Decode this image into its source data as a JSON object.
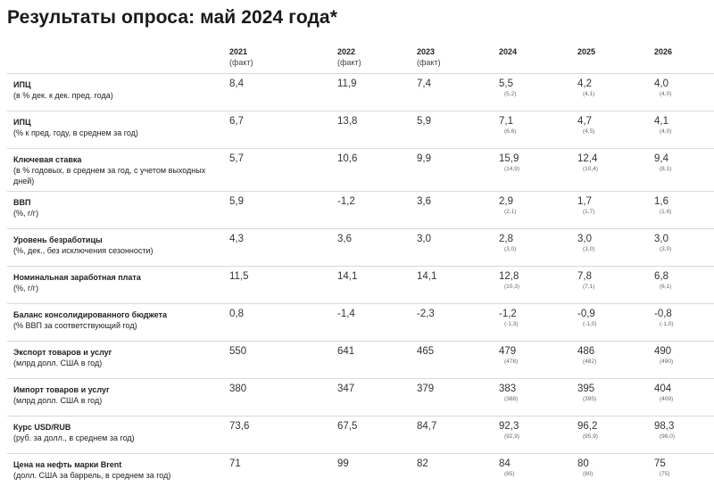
{
  "title": "Результаты опроса: май 2024 года*",
  "columns": [
    {
      "year": "2021",
      "note": "(факт)"
    },
    {
      "year": "2022",
      "note": "(факт)"
    },
    {
      "year": "2023",
      "note": "(факт)"
    },
    {
      "year": "2024",
      "note": ""
    },
    {
      "year": "2025",
      "note": ""
    },
    {
      "year": "2026",
      "note": ""
    }
  ],
  "rows": [
    {
      "name": "ИПЦ",
      "unit": "(в % дек. к дек. пред. года)",
      "v2021": "8,4",
      "v2022": "11,9",
      "v2023": "7,4",
      "v2024": "5,5",
      "c2024": "(5,2)",
      "v2025": "4,2",
      "c2025": "(4,1)",
      "v2026": "4,0",
      "c2026": "(4,0)"
    },
    {
      "name": "ИПЦ",
      "unit": "(% к пред. году, в среднем за год)",
      "v2021": "6,7",
      "v2022": "13,8",
      "v2023": "5,9",
      "v2024": "7,1",
      "c2024": "(6,6)",
      "v2025": "4,7",
      "c2025": "(4,5)",
      "v2026": "4,1",
      "c2026": "(4,0)"
    },
    {
      "name": "Ключевая ставка",
      "unit": "(в % годовых, в среднем за год, с учетом выходных дней)",
      "v2021": "5,7",
      "v2022": "10,6",
      "v2023": "9,9",
      "v2024": "15,9",
      "c2024": "(14,9)",
      "v2025": "12,4",
      "c2025": "(10,4)",
      "v2026": "9,4",
      "c2026": "(8,1)"
    },
    {
      "name": "ВВП",
      "unit": "(%, г/г)",
      "v2021": "5,9",
      "v2022": "-1,2",
      "v2023": "3,6",
      "v2024": "2,9",
      "c2024": "(2,1)",
      "v2025": "1,7",
      "c2025": "(1,7)",
      "v2026": "1,6",
      "c2026": "(1,6)"
    },
    {
      "name": "Уровень безработицы",
      "unit": "(%, дек., без исключения сезонности)",
      "v2021": "4,3",
      "v2022": "3,6",
      "v2023": "3,0",
      "v2024": "2,8",
      "c2024": "(3,0)",
      "v2025": "3,0",
      "c2025": "(3,0)",
      "v2026": "3,0",
      "c2026": "(3,0)"
    },
    {
      "name": "Номинальная заработная плата",
      "unit": "(%, г/г)",
      "v2021": "11,5",
      "v2022": "14,1",
      "v2023": "14,1",
      "v2024": "12,8",
      "c2024": "(10,3)",
      "v2025": "7,8",
      "c2025": "(7,1)",
      "v2026": "6,8",
      "c2026": "(6,1)"
    },
    {
      "name": "Баланс консолидированного бюджета",
      "unit": "(% ВВП за соответствующий год)",
      "v2021": "0,8",
      "v2022": "-1,4",
      "v2023": "-2,3",
      "v2024": "-1,2",
      "c2024": "(-1,3)",
      "v2025": "-0,9",
      "c2025": "(-1,0)",
      "v2026": "-0,8",
      "c2026": "(-1,0)"
    },
    {
      "name": "Экспорт товаров и услуг",
      "unit": "(млрд долл. США в год)",
      "v2021": "550",
      "v2022": "641",
      "v2023": "465",
      "v2024": "479",
      "c2024": "(478)",
      "v2025": "486",
      "c2025": "(482)",
      "v2026": "490",
      "c2026": "(490)"
    },
    {
      "name": "Импорт товаров и услуг",
      "unit": "(млрд долл. США в год)",
      "v2021": "380",
      "v2022": "347",
      "v2023": "379",
      "v2024": "383",
      "c2024": "(388)",
      "v2025": "395",
      "c2025": "(395)",
      "v2026": "404",
      "c2026": "(409)"
    },
    {
      "name": "Курс USD/RUB",
      "unit": "(руб. за долл., в среднем за год)",
      "v2021": "73,6",
      "v2022": "67,5",
      "v2023": "84,7",
      "v2024": "92,3",
      "c2024": "(92,9)",
      "v2025": "96,2",
      "c2025": "(95,9)",
      "v2026": "98,3",
      "c2026": "(98,0)"
    },
    {
      "name": "Цена на нефть марки Brent",
      "unit": "(долл. США за баррель, в среднем за год)",
      "v2021": "71",
      "v2022": "99",
      "v2023": "82",
      "v2024": "84",
      "c2024": "(85)",
      "v2025": "80",
      "c2025": "(80)",
      "v2026": "75",
      "c2026": "(75)"
    }
  ]
}
